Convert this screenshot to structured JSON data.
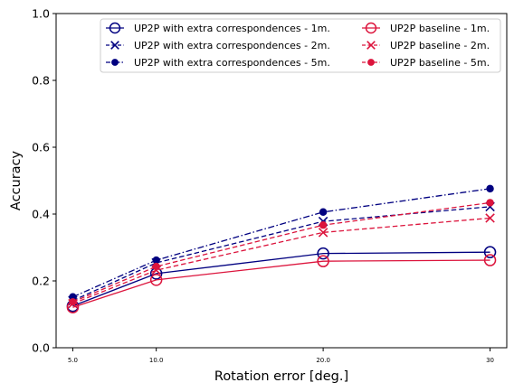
{
  "chart_data": {
    "type": "line",
    "title": "",
    "xlabel": "Rotation error [deg.]",
    "ylabel": "Accuracy",
    "x": [
      5,
      10,
      20,
      30
    ],
    "x_tick_labels": [
      "5.0",
      "10.0",
      "20.0",
      "30"
    ],
    "xlim": [
      4.0,
      31.0
    ],
    "ylim": [
      0.0,
      1.0
    ],
    "y_ticks": [
      "0.0",
      "0.2",
      "0.4",
      "0.6",
      "0.8",
      "1.0"
    ],
    "grid": false,
    "legend_position": "top-right",
    "legend_columns": 2,
    "series": [
      {
        "name": "UP2P with extra correspondences - 1m.",
        "color": "#000080",
        "linestyle": "solid",
        "marker": "open-circle",
        "values": [
          0.125,
          0.222,
          0.282,
          0.286
        ]
      },
      {
        "name": "UP2P with extra correspondences - 2m.",
        "color": "#000080",
        "linestyle": "dashed",
        "marker": "x",
        "values": [
          0.141,
          0.254,
          0.378,
          0.422
        ]
      },
      {
        "name": "UP2P with extra correspondences - 5m.",
        "color": "#000080",
        "linestyle": "dashdot",
        "marker": "filled-circle",
        "values": [
          0.152,
          0.262,
          0.406,
          0.476
        ]
      },
      {
        "name": "UP2P baseline - 1m.",
        "color": "#dc143c",
        "linestyle": "solid",
        "marker": "open-circle",
        "values": [
          0.121,
          0.203,
          0.259,
          0.262
        ]
      },
      {
        "name": "UP2P baseline - 2m.",
        "color": "#dc143c",
        "linestyle": "dashed",
        "marker": "x",
        "values": [
          0.132,
          0.232,
          0.345,
          0.388
        ]
      },
      {
        "name": "UP2P baseline - 5m.",
        "color": "#dc143c",
        "linestyle": "dashed",
        "marker": "filled-circle",
        "values": [
          0.137,
          0.243,
          0.367,
          0.434
        ]
      }
    ]
  }
}
